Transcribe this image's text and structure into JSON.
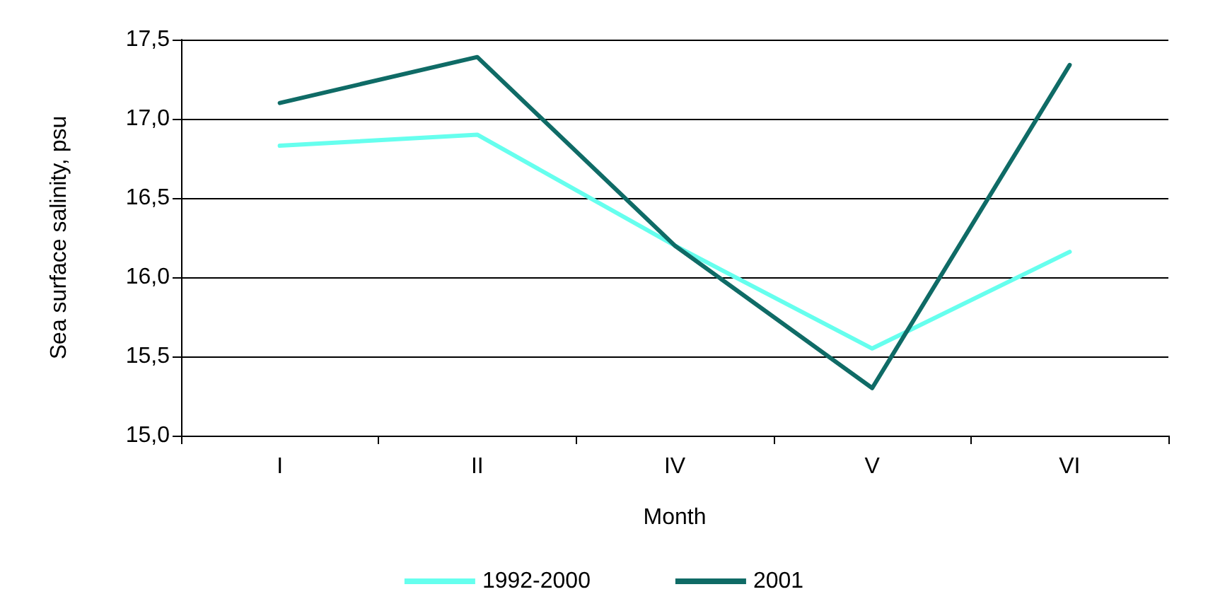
{
  "chart_data": {
    "type": "line",
    "xlabel": "Month",
    "ylabel": "Sea surface salinity, psu",
    "categories": [
      "I",
      "II",
      "IV",
      "V",
      "VI"
    ],
    "series": [
      {
        "name": "1992-2000",
        "color": "#66ffee",
        "values": [
          16.83,
          16.9,
          16.2,
          15.55,
          16.16
        ]
      },
      {
        "name": "2001",
        "color": "#0f6b66",
        "values": [
          17.1,
          17.39,
          16.2,
          15.3,
          17.34
        ]
      }
    ],
    "ylim": [
      15,
      17.5
    ],
    "yticks": [
      {
        "value": 15,
        "label": "15,0"
      },
      {
        "value": 15.5,
        "label": "15,5"
      },
      {
        "value": 16,
        "label": "16,0"
      },
      {
        "value": 16.5,
        "label": "16,5"
      },
      {
        "value": 17,
        "label": "17,0"
      },
      {
        "value": 17.5,
        "label": "17,5"
      }
    ],
    "grid": "y",
    "legend": "bottom",
    "marker": "none",
    "line_style": "solid"
  }
}
